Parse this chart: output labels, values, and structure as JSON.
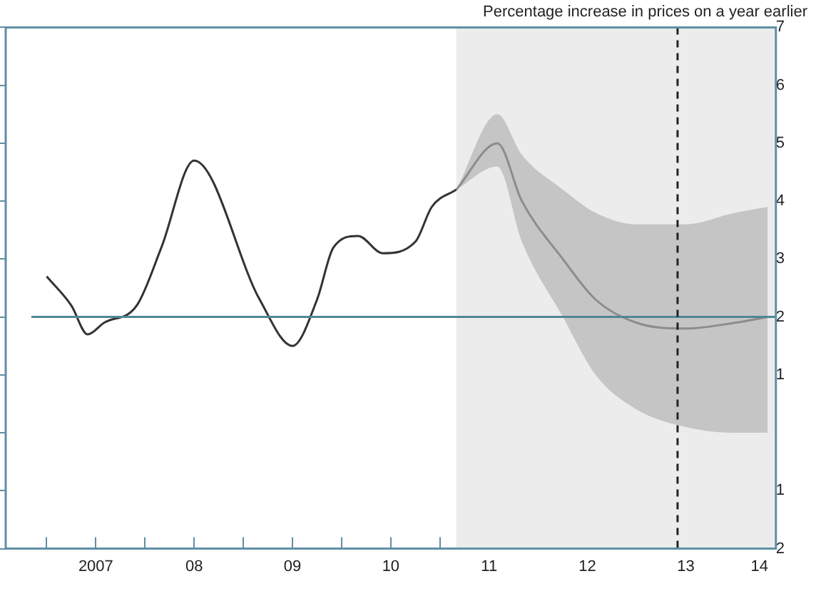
{
  "chart_data": {
    "type": "line",
    "title": "Percentage increase in prices on a year earlier",
    "xlim": [
      "2006-08",
      "2014-06"
    ],
    "xticks": [
      {
        "value": "2007-01",
        "label": null
      },
      {
        "value": "2007-07",
        "label": "2007"
      },
      {
        "value": "2008-01",
        "label": null
      },
      {
        "value": "2008-07",
        "label": "08"
      },
      {
        "value": "2009-01",
        "label": null
      },
      {
        "value": "2009-07",
        "label": "09"
      },
      {
        "value": "2010-01",
        "label": null
      },
      {
        "value": "2010-07",
        "label": "10"
      },
      {
        "value": "2011-01",
        "label": null
      },
      {
        "value": "2011-07",
        "label": "11"
      },
      {
        "value": "2012-01",
        "label": null
      },
      {
        "value": "2012-07",
        "label": "12"
      },
      {
        "value": "2013-01",
        "label": null
      },
      {
        "value": "2013-07",
        "label": "13"
      },
      {
        "value": "2014-01",
        "label": null
      },
      {
        "value": "2014-04",
        "label": "14"
      }
    ],
    "ylim": [
      -2,
      7
    ],
    "yticks": [
      {
        "value": -2,
        "label": "2"
      },
      {
        "value": -1,
        "label": "1"
      },
      {
        "value": 0,
        "label": null
      },
      1,
      2,
      3,
      4,
      5,
      6,
      7
    ],
    "grid": false,
    "legend": false,
    "marker": "none",
    "series": [
      {
        "color": "#333333",
        "x": [
          "2007-01",
          "2007-04",
          "2007-06",
          "2007-08",
          "2007-12",
          "2008-03",
          "2008-07",
          "2009-03",
          "2009-07",
          "2009-10",
          "2009-12",
          "2010-03",
          "2010-06",
          "2010-10",
          "2010-12",
          "2011-03"
        ],
        "values": [
          2.7,
          2.2,
          1.7,
          1.9,
          2.2,
          3.2,
          4.7,
          2.3,
          1.5,
          2.3,
          3.2,
          3.4,
          3.1,
          3.3,
          3.9,
          4.2
        ]
      },
      {
        "color": "#8c8c8c",
        "x": [
          "2011-03",
          "2011-08",
          "2011-11",
          "2012-04",
          "2012-08",
          "2013-01",
          "2013-07",
          "2014-01",
          "2014-05"
        ],
        "values": [
          4.2,
          5.0,
          4.0,
          3.0,
          2.3,
          1.9,
          1.8,
          1.9,
          2.0
        ],
        "lower": [
          4.2,
          4.6,
          3.3,
          2.0,
          1.0,
          0.4,
          0.1,
          0.0,
          0.0
        ],
        "upper": [
          4.2,
          5.5,
          4.8,
          4.2,
          3.8,
          3.6,
          3.6,
          3.8,
          3.9
        ]
      }
    ],
    "ref_lines": [
      {
        "axis": "y",
        "value": 2,
        "color": "#4f8797",
        "line_style": "solid"
      },
      {
        "axis": "x",
        "value": "2013-06",
        "color": "#222222",
        "line_style": "dashed"
      }
    ],
    "bands": [
      {
        "axis": "x",
        "from": "2011-03",
        "to": "2014-06",
        "color": "#ececec"
      }
    ]
  }
}
